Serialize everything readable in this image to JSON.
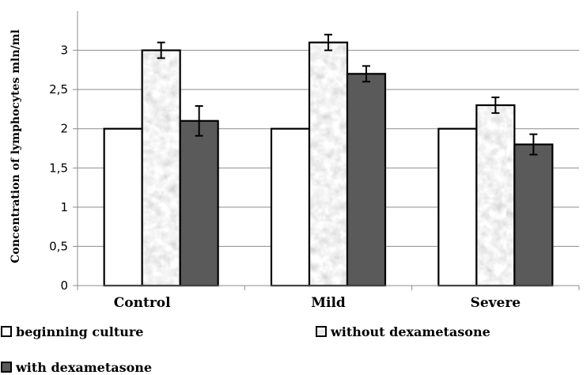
{
  "chart_data": {
    "type": "bar",
    "ylabel": "Concentration of lymphocytes mln/ml",
    "xlabel": "",
    "categories": [
      "Control",
      "Mild",
      "Severe"
    ],
    "ylim": [
      0,
      3.5
    ],
    "yticks": [
      0,
      0.5,
      1,
      1.5,
      2,
      2.5,
      3
    ],
    "ytick_labels": [
      "0",
      "0,5",
      "1",
      "1,5",
      "2",
      "2,5",
      "3"
    ],
    "grid": true,
    "legend_position": "bottom",
    "series": [
      {
        "name": "beginning culture",
        "values": [
          2.0,
          2.0,
          2.0
        ],
        "errors": null,
        "fill": "#ffffff",
        "pattern": "none"
      },
      {
        "name": "without dexametasone",
        "values": [
          3.0,
          3.1,
          2.3
        ],
        "errors": [
          0.1,
          0.1,
          0.1
        ],
        "fill": "#e3e3e3",
        "pattern": "mottled-gray"
      },
      {
        "name": "with dexametasone",
        "values": [
          2.1,
          2.7,
          1.8
        ],
        "errors": [
          0.19,
          0.1,
          0.13
        ],
        "fill": "#5a5a5a",
        "pattern": "none"
      }
    ]
  }
}
